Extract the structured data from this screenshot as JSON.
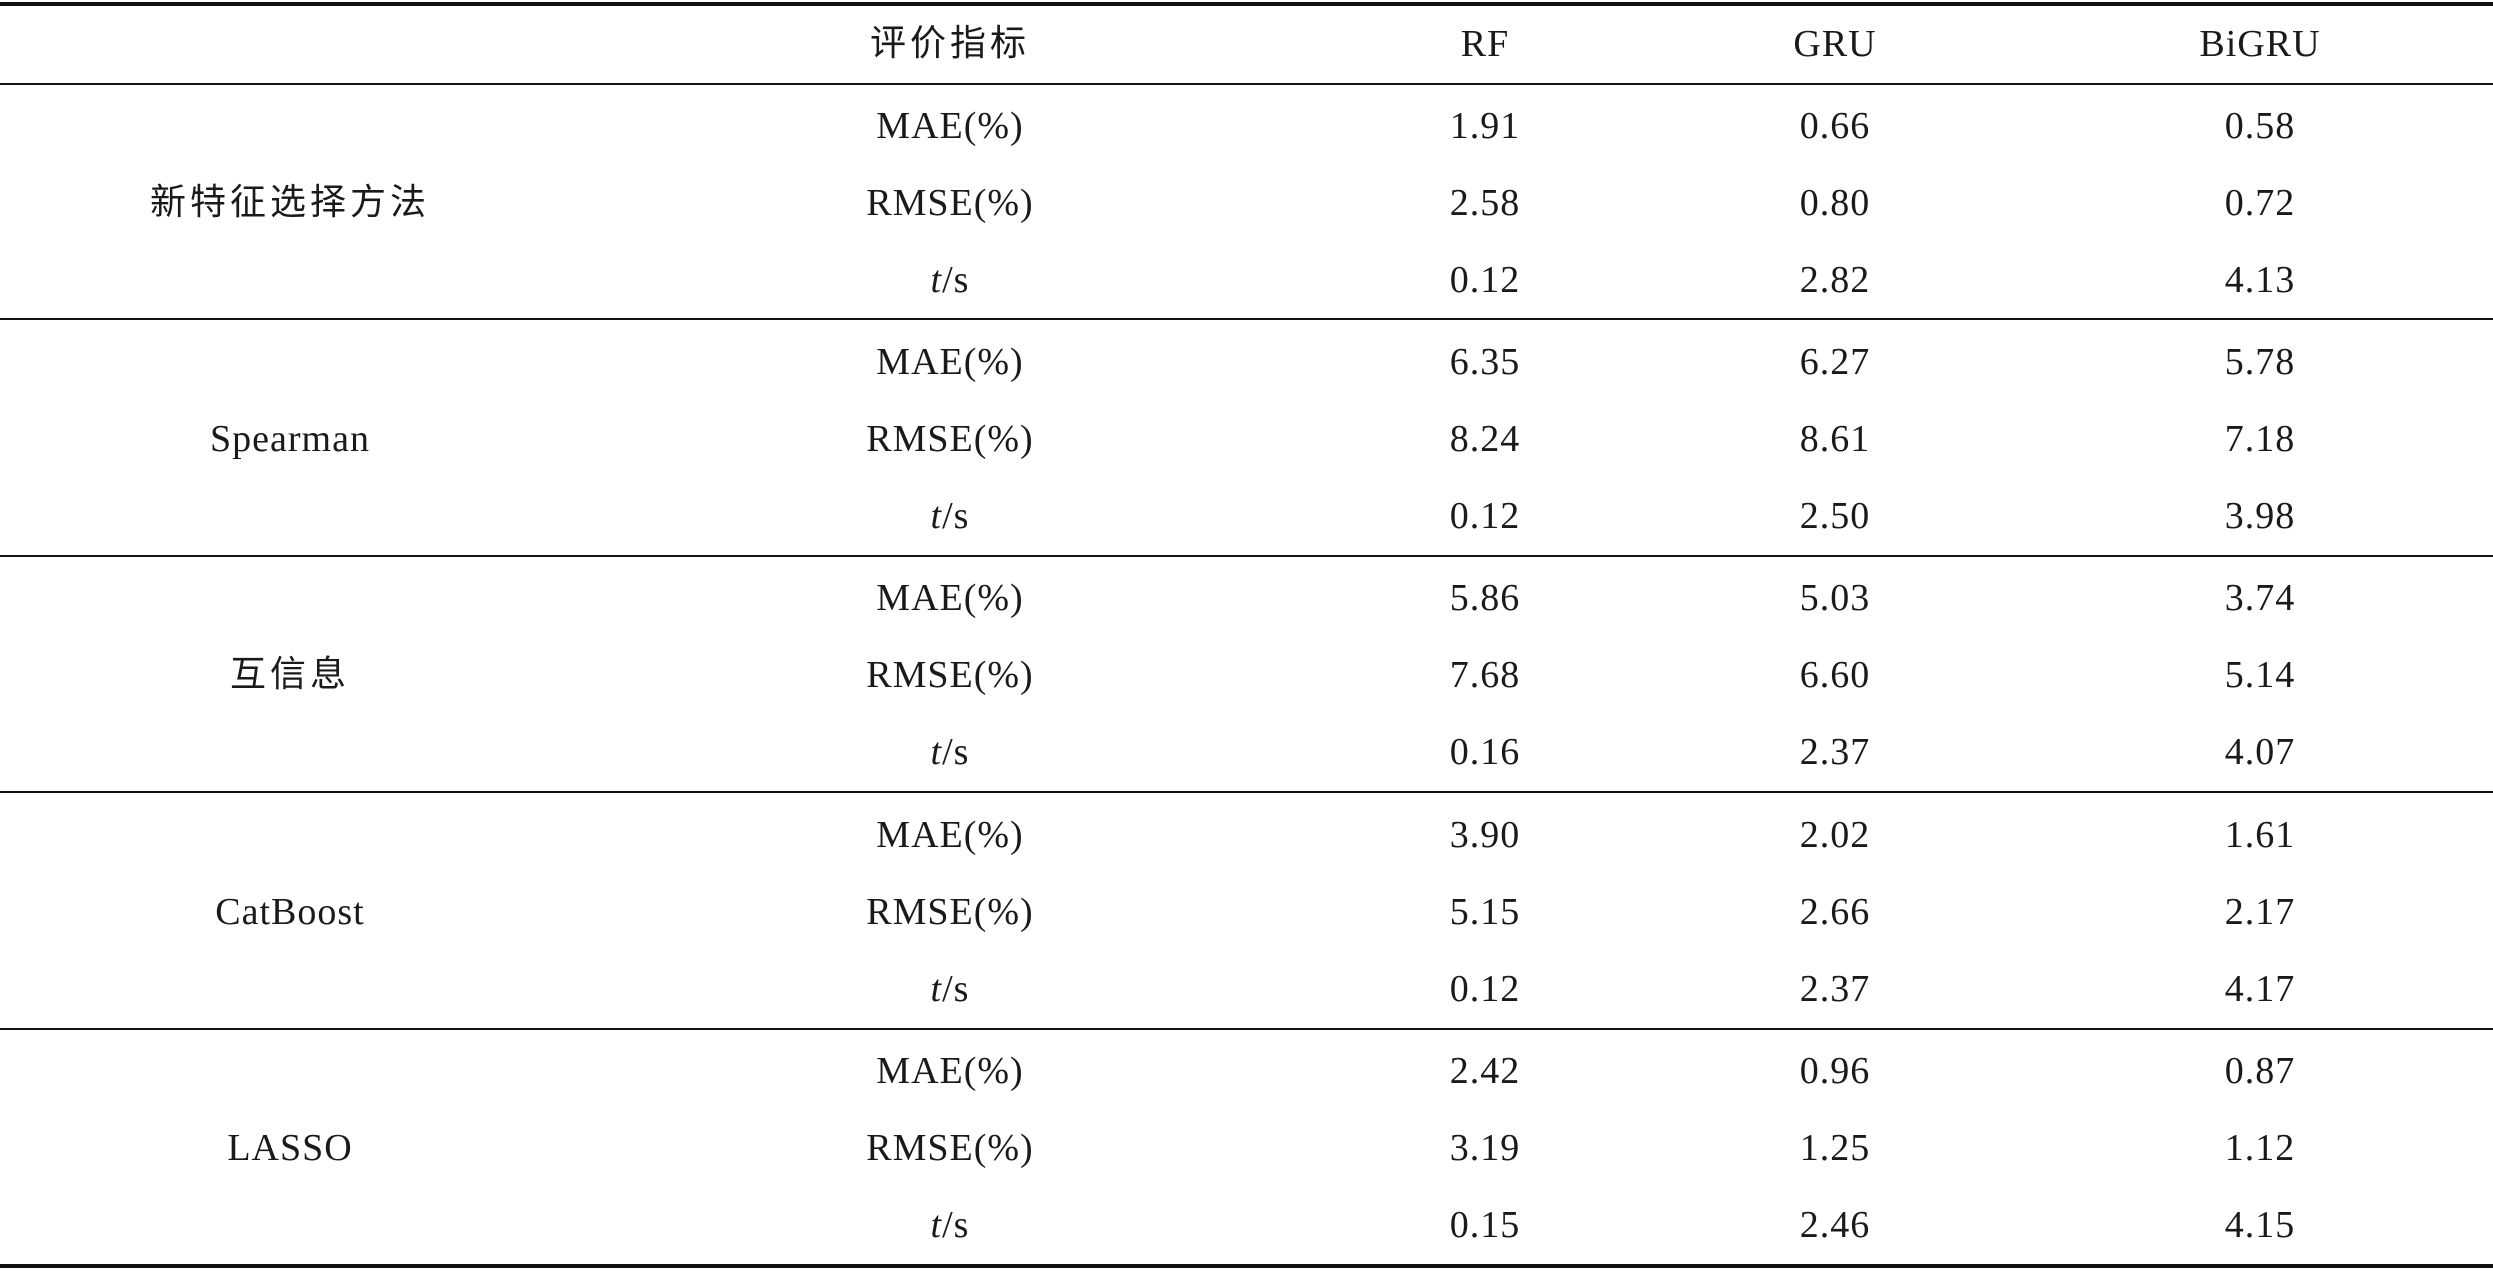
{
  "header": {
    "metric_col": "评价指标",
    "models": [
      "RF",
      "GRU",
      "BiGRU"
    ]
  },
  "groups": [
    {
      "method": "新特征选择方法",
      "rows": [
        {
          "metric": "MAE(%)",
          "values": [
            "1.91",
            "0.66",
            "0.58"
          ]
        },
        {
          "metric": "RMSE(%)",
          "values": [
            "2.58",
            "0.80",
            "0.72"
          ]
        },
        {
          "metric_var": "t",
          "metric_unit": "/s",
          "values": [
            "0.12",
            "2.82",
            "4.13"
          ]
        }
      ]
    },
    {
      "method": "Spearman",
      "rows": [
        {
          "metric": "MAE(%)",
          "values": [
            "6.35",
            "6.27",
            "5.78"
          ]
        },
        {
          "metric": "RMSE(%)",
          "values": [
            "8.24",
            "8.61",
            "7.18"
          ]
        },
        {
          "metric_var": "t",
          "metric_unit": "/s",
          "values": [
            "0.12",
            "2.50",
            "3.98"
          ]
        }
      ]
    },
    {
      "method": "互信息",
      "rows": [
        {
          "metric": "MAE(%)",
          "values": [
            "5.86",
            "5.03",
            "3.74"
          ]
        },
        {
          "metric": "RMSE(%)",
          "values": [
            "7.68",
            "6.60",
            "5.14"
          ]
        },
        {
          "metric_var": "t",
          "metric_unit": "/s",
          "values": [
            "0.16",
            "2.37",
            "4.07"
          ]
        }
      ]
    },
    {
      "method": "CatBoost",
      "rows": [
        {
          "metric": "MAE(%)",
          "values": [
            "3.90",
            "2.02",
            "1.61"
          ]
        },
        {
          "metric": "RMSE(%)",
          "values": [
            "5.15",
            "2.66",
            "2.17"
          ]
        },
        {
          "metric_var": "t",
          "metric_unit": "/s",
          "values": [
            "0.12",
            "2.37",
            "4.17"
          ]
        }
      ]
    },
    {
      "method": "LASSO",
      "rows": [
        {
          "metric": "MAE(%)",
          "values": [
            "2.42",
            "0.96",
            "0.87"
          ]
        },
        {
          "metric": "RMSE(%)",
          "values": [
            "3.19",
            "1.25",
            "1.12"
          ]
        },
        {
          "metric_var": "t",
          "metric_unit": "/s",
          "values": [
            "0.15",
            "2.46",
            "4.15"
          ]
        }
      ]
    }
  ]
}
